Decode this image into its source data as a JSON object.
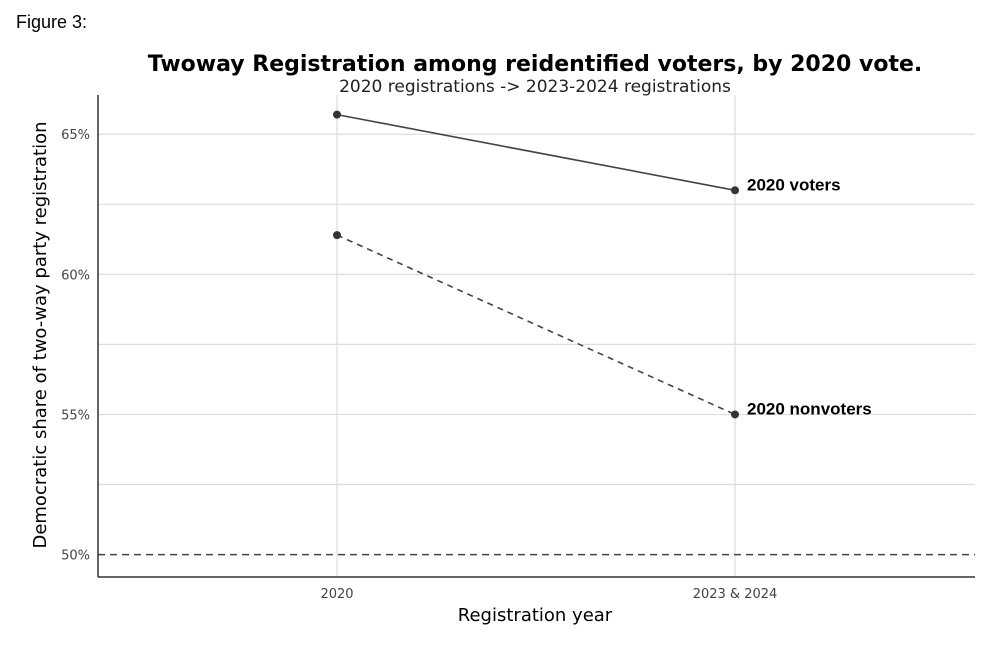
{
  "figure_label": "Figure 3:",
  "chart_data": {
    "type": "line",
    "title": "Twoway Registration among reidentified voters, by 2020 vote.",
    "subtitle": "2020 registrations -> 2023-2024 registrations",
    "xlabel": "Registration year",
    "ylabel": "Democratic share of two-way party registration",
    "categories": [
      "2020",
      "2023 & 2024"
    ],
    "y_ticks": [
      50,
      55,
      60,
      65
    ],
    "y_tick_labels": [
      "50%",
      "55%",
      "60%",
      "65%"
    ],
    "ylim": [
      49.2,
      66.4
    ],
    "reference_line": 50,
    "series": [
      {
        "name": "2020 voters",
        "values": [
          65.7,
          63.0
        ],
        "style": "solid"
      },
      {
        "name": "2020 nonvoters",
        "values": [
          61.4,
          55.0
        ],
        "style": "dashed"
      }
    ],
    "colors": {
      "line": "#444444",
      "grid": "#dddddd",
      "axis": "#333333"
    }
  }
}
